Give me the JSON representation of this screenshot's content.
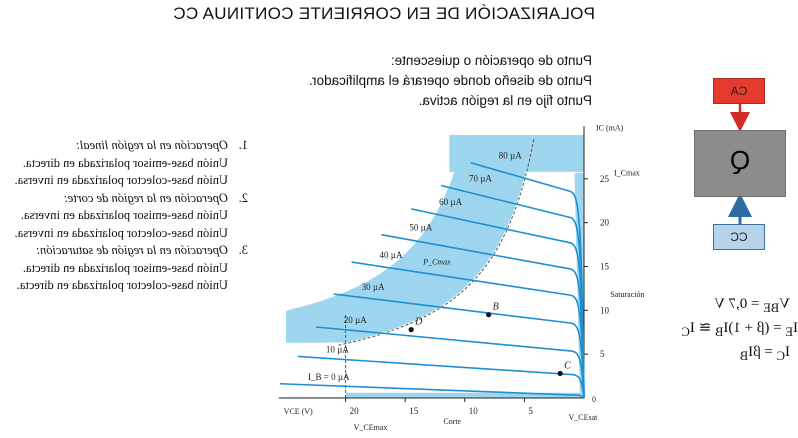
{
  "slide": {
    "title": "POLARIZACIÓN DE EN CORRIENTE CONTINUA CC",
    "intro": [
      "Punto de operación o quiescente:",
      "Punto de diseño donde operará el amplificador.",
      "Punto fijo en la región activa."
    ],
    "regions": [
      {
        "num": "1.",
        "head": "Operación en la región lineal:",
        "lines": [
          "Unión base-emisor polarizada en directa.",
          "Unión base-colector polarizada en inversa."
        ]
      },
      {
        "num": "2.",
        "head": "Operación en la región de corte:",
        "lines": [
          "Unión base-emisor polarizada en inversa.",
          "Unión base-colector polarizada en inversa."
        ]
      },
      {
        "num": "3.",
        "head": "Operación en la región de saturación:",
        "lines": [
          "Unión base-emisor polarizada en directa.",
          "Unión base-colector polarizada en directa."
        ]
      }
    ],
    "block": {
      "label": "Q",
      "top": "CA",
      "bottom": "CC"
    },
    "equations": [
      "V<sub>BE</sub> = 0,7 V",
      "I<sub>E</sub> = (β + 1)I<sub>B</sub> ≅ I<sub>C</sub>",
      "I<sub>C</sub> = βI<sub>B</sub>"
    ],
    "colors": {
      "curve": "#1e90d2",
      "region": "#9fd6ef",
      "ca": "#e53b2f",
      "cc": "#b7d3ea",
      "block": "#8c8c8c",
      "arrow_red": "#d42a2a",
      "arrow_blue": "#2f6ca3"
    }
  },
  "chart_data": {
    "type": "line",
    "title": "",
    "xlabel": "V_CE (V)",
    "ylabel": "I_C (mA)",
    "xlim": [
      0,
      25
    ],
    "ylim": [
      0,
      30
    ],
    "x_ticks": [
      "5",
      "10",
      "15",
      "20"
    ],
    "y_ticks": [
      "5",
      "10",
      "15",
      "20",
      "25"
    ],
    "series": [
      {
        "name": "I_B = 0 µA",
        "ib": 0
      },
      {
        "name": "10 µA",
        "ib": 10
      },
      {
        "name": "20 µA",
        "ib": 20
      },
      {
        "name": "30 µA",
        "ib": 30
      },
      {
        "name": "40 µA",
        "ib": 40
      },
      {
        "name": "50 µA",
        "ib": 50
      },
      {
        "name": "60 µA",
        "ib": 60
      },
      {
        "name": "70 µA",
        "ib": 70
      },
      {
        "name": "80 µA",
        "ib": 80
      }
    ],
    "points": [
      {
        "label": "B",
        "x": 8,
        "y": 9.5
      },
      {
        "label": "C",
        "x": 2,
        "y": 2.8
      },
      {
        "label": "D",
        "x": 14.5,
        "y": 7.8
      }
    ],
    "annotations": {
      "ic_max": "I_Cmax",
      "pc_max": "P_Cmax",
      "vce_max": "V_CEmax",
      "vce_sat": "V_CEsat",
      "cut_off": "Corte",
      "saturation": "Saturación",
      "origin": "0"
    }
  }
}
